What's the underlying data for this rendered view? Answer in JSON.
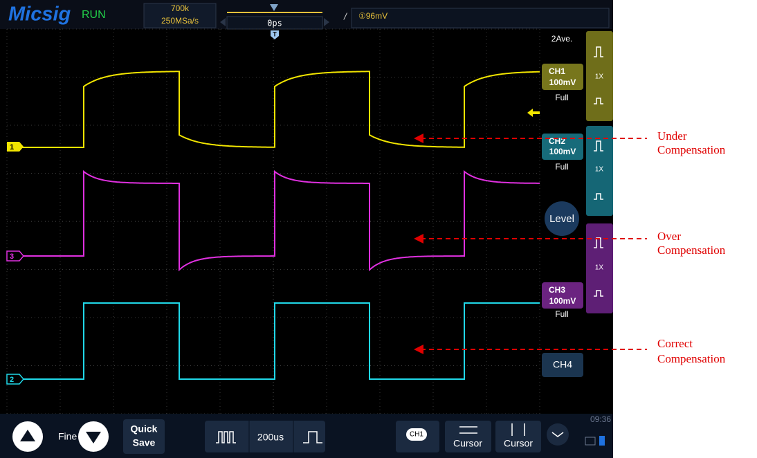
{
  "header": {
    "logo": "Micsig",
    "status": "RUN",
    "memory_depth": "700k",
    "sample_rate": "250MSa/s",
    "trigger_position": "0ps",
    "trigger_level": "①96mV"
  },
  "display": {
    "trigger_marker": "T",
    "channel_markers": [
      "1",
      "3",
      "2"
    ]
  },
  "side_panel": {
    "acquisition": "2Ave.",
    "channels": [
      {
        "name": "CH1",
        "scale": "100mV",
        "bandwidth": "Full",
        "probe": "1X"
      },
      {
        "name": "CH2",
        "scale": "100mV",
        "bandwidth": "Full",
        "probe": "1X"
      },
      {
        "name": "CH3",
        "scale": "100mV",
        "bandwidth": "Full",
        "probe": "1X"
      }
    ],
    "ch4": "CH4",
    "level": "Level"
  },
  "bottom_bar": {
    "fine": "Fine",
    "quick_save": [
      "Quick",
      "Save"
    ],
    "timebase": "200us",
    "ch1_button": "CH1",
    "cursor_horizontal": "Cursor",
    "cursor_vertical": "Cursor",
    "time": "09:36"
  },
  "annotations": [
    {
      "lines": [
        "Under",
        "Compensation"
      ]
    },
    {
      "lines": [
        "Over",
        "Compensation"
      ]
    },
    {
      "lines": [
        "Correct",
        "Compensation"
      ]
    }
  ]
}
